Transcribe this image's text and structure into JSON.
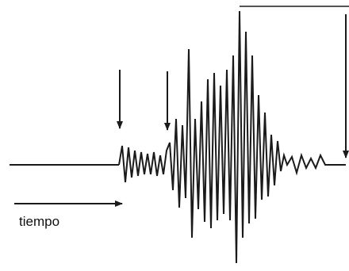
{
  "labels": {
    "time_axis": "tiempo"
  },
  "colors": {
    "line": "#1a1a1a",
    "background": "#ffffff"
  }
}
